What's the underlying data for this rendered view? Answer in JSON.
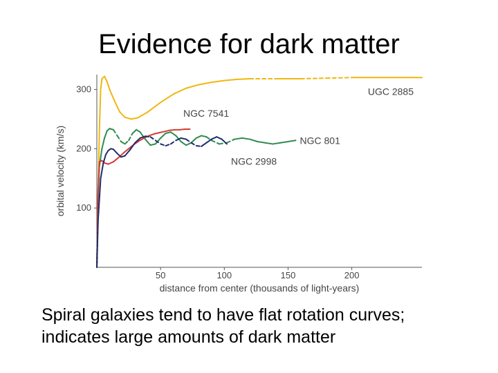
{
  "slide": {
    "title": "Evidence for dark matter",
    "caption_line1": "Spiral galaxies tend to have flat rotation curves;",
    "caption_line2": "indicates large amounts of dark matter"
  },
  "chart_data": {
    "type": "line",
    "title": "",
    "xlabel": "distance from center (thousands of light-years)",
    "ylabel": "orbital velocity (km/s)",
    "xlim": [
      0,
      255
    ],
    "ylim": [
      0,
      325
    ],
    "xticks": [
      50,
      100,
      150,
      200
    ],
    "yticks": [
      100,
      200,
      300
    ],
    "grid": false,
    "legend": "labels placed next to curves",
    "series": [
      {
        "name": "UGC 2885",
        "color": "#efb70f",
        "points": [
          [
            0,
            0
          ],
          [
            1,
            120
          ],
          [
            2,
            230
          ],
          [
            3,
            300
          ],
          [
            4,
            318
          ],
          [
            6,
            322
          ],
          [
            8,
            313
          ],
          [
            10,
            300
          ],
          [
            14,
            280
          ],
          [
            18,
            262
          ],
          [
            22,
            253
          ],
          [
            27,
            250
          ],
          [
            32,
            252
          ],
          [
            40,
            262
          ],
          [
            50,
            278
          ],
          [
            60,
            292
          ],
          [
            70,
            302
          ],
          [
            80,
            308
          ],
          [
            90,
            312
          ],
          [
            100,
            315
          ],
          [
            110,
            317
          ],
          [
            120,
            318
          ],
          [
            140,
            318
          ],
          [
            160,
            318
          ],
          [
            180,
            319
          ],
          [
            200,
            320
          ],
          [
            220,
            320
          ],
          [
            240,
            320
          ],
          [
            255,
            320
          ]
        ],
        "dashed_ranges": [
          [
            120,
            135
          ],
          [
            170,
            195
          ]
        ]
      },
      {
        "name": "NGC 801",
        "color": "#2e8b4f",
        "points": [
          [
            0,
            0
          ],
          [
            1,
            120
          ],
          [
            2,
            170
          ],
          [
            4,
            200
          ],
          [
            6,
            218
          ],
          [
            8,
            230
          ],
          [
            10,
            234
          ],
          [
            13,
            232
          ],
          [
            16,
            222
          ],
          [
            19,
            212
          ],
          [
            22,
            208
          ],
          [
            25,
            214
          ],
          [
            28,
            226
          ],
          [
            31,
            232
          ],
          [
            34,
            228
          ],
          [
            38,
            216
          ],
          [
            42,
            206
          ],
          [
            46,
            208
          ],
          [
            50,
            218
          ],
          [
            54,
            226
          ],
          [
            58,
            228
          ],
          [
            62,
            222
          ],
          [
            66,
            212
          ],
          [
            70,
            206
          ],
          [
            74,
            210
          ],
          [
            78,
            218
          ],
          [
            82,
            222
          ],
          [
            86,
            220
          ],
          [
            90,
            214
          ],
          [
            96,
            208
          ],
          [
            102,
            210
          ],
          [
            108,
            216
          ],
          [
            114,
            218
          ],
          [
            120,
            216
          ],
          [
            126,
            212
          ],
          [
            132,
            210
          ],
          [
            138,
            208
          ],
          [
            144,
            210
          ],
          [
            150,
            212
          ],
          [
            156,
            214
          ]
        ],
        "dashed_ranges": [
          [
            14,
            28
          ],
          [
            88,
            108
          ]
        ]
      },
      {
        "name": "NGC 7541",
        "color": "#d63a34",
        "points": [
          [
            0,
            0
          ],
          [
            1,
            130
          ],
          [
            2,
            178
          ],
          [
            4,
            180
          ],
          [
            6,
            176
          ],
          [
            9,
            174
          ],
          [
            13,
            178
          ],
          [
            17,
            185
          ],
          [
            21,
            193
          ],
          [
            25,
            200
          ],
          [
            29,
            207
          ],
          [
            33,
            213
          ],
          [
            37,
            218
          ],
          [
            41,
            222
          ],
          [
            45,
            225
          ],
          [
            49,
            227
          ],
          [
            53,
            229
          ],
          [
            57,
            231
          ],
          [
            61,
            232
          ],
          [
            65,
            232
          ],
          [
            69,
            233
          ],
          [
            73,
            233
          ]
        ]
      },
      {
        "name": "NGC 2998",
        "color": "#1c2d6b",
        "points": [
          [
            0,
            0
          ],
          [
            1,
            80
          ],
          [
            3,
            150
          ],
          [
            5,
            175
          ],
          [
            7,
            190
          ],
          [
            9,
            197
          ],
          [
            11,
            200
          ],
          [
            13,
            199
          ],
          [
            16,
            192
          ],
          [
            19,
            186
          ],
          [
            22,
            188
          ],
          [
            26,
            198
          ],
          [
            30,
            210
          ],
          [
            34,
            218
          ],
          [
            38,
            221
          ],
          [
            42,
            220
          ],
          [
            46,
            214
          ],
          [
            50,
            208
          ],
          [
            54,
            205
          ],
          [
            58,
            208
          ],
          [
            62,
            214
          ],
          [
            66,
            218
          ],
          [
            70,
            216
          ],
          [
            74,
            210
          ],
          [
            78,
            205
          ],
          [
            82,
            204
          ],
          [
            86,
            210
          ],
          [
            90,
            216
          ],
          [
            94,
            220
          ],
          [
            98,
            216
          ],
          [
            102,
            208
          ]
        ],
        "dashed_ranges": [
          [
            40,
            60
          ],
          [
            72,
            82
          ]
        ]
      }
    ],
    "labels": [
      {
        "text": "UGC 2885",
        "series": "UGC 2885"
      },
      {
        "text": "NGC 7541",
        "series": "NGC 7541"
      },
      {
        "text": "NGC 801",
        "series": "NGC 801"
      },
      {
        "text": "NGC 2998",
        "series": "NGC 2998"
      }
    ]
  }
}
